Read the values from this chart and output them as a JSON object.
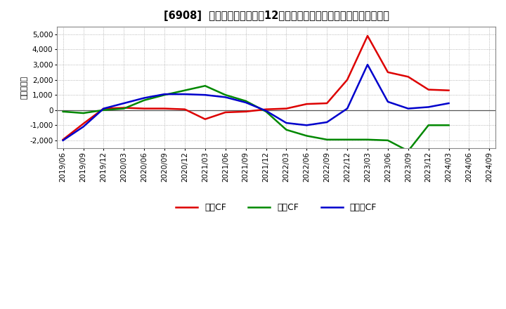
{
  "title": "[6908]  キャッシュフローの12か月移動合計の対前年同期増減額の推移",
  "ylabel": "（百万円）",
  "ylim": [
    -2500,
    5500
  ],
  "yticks": [
    -2000,
    -1000,
    0,
    1000,
    2000,
    3000,
    4000,
    5000
  ],
  "background_color": "#ffffff",
  "grid_color": "#aaaaaa",
  "dates": [
    "2019/06",
    "2019/09",
    "2019/12",
    "2020/03",
    "2020/06",
    "2020/09",
    "2020/12",
    "2021/03",
    "2021/06",
    "2021/09",
    "2021/12",
    "2022/03",
    "2022/06",
    "2022/09",
    "2022/12",
    "2023/03",
    "2023/06",
    "2023/09",
    "2023/12",
    "2024/03",
    "2024/06",
    "2024/09"
  ],
  "operating_cf": [
    -1950,
    -900,
    100,
    150,
    100,
    100,
    50,
    -600,
    -150,
    -100,
    50,
    100,
    400,
    450,
    2000,
    4900,
    2500,
    2200,
    1350,
    1300,
    null,
    null
  ],
  "investing_cf": [
    -100,
    -200,
    0,
    100,
    650,
    1000,
    1300,
    1600,
    1000,
    600,
    -100,
    -1300,
    -1700,
    -1950,
    -1950,
    -1950,
    -2000,
    -2700,
    -1000,
    -1000,
    null,
    null
  ],
  "free_cf": [
    -2000,
    -1100,
    100,
    450,
    800,
    1050,
    1050,
    1000,
    850,
    500,
    -50,
    -850,
    -1000,
    -800,
    100,
    3000,
    550,
    100,
    200,
    450,
    null,
    null
  ],
  "legend_labels": [
    "営業CF",
    "投資CF",
    "フリーCF"
  ],
  "line_colors": [
    "#dd0000",
    "#008800",
    "#0000cc"
  ],
  "line_width": 1.8
}
